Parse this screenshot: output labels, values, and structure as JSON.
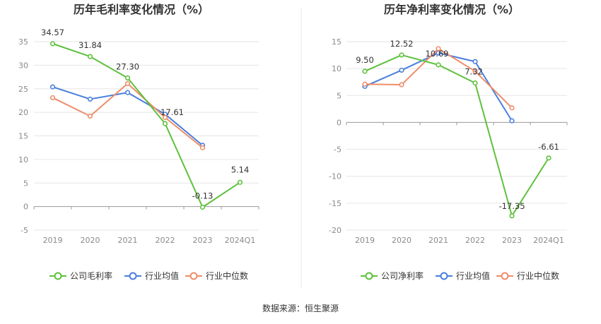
{
  "chart_data": [
    {
      "type": "line",
      "title": "历年毛利率变化情况（%）",
      "categories": [
        "2019",
        "2020",
        "2021",
        "2022",
        "2023",
        "2024Q1"
      ],
      "yticks": [
        "35",
        "30",
        "25",
        "20",
        "15",
        "10",
        "5",
        "0",
        "-5"
      ],
      "ylim": [
        -5,
        35
      ],
      "grid": true,
      "legend_position": "bottom",
      "series": [
        {
          "name": "公司毛利率",
          "color": "#5ec13d",
          "values": [
            34.57,
            31.84,
            27.3,
            17.61,
            -0.13,
            5.14
          ],
          "labels": [
            "34.57",
            "31.84",
            "27.30",
            "17.61",
            "-0.13",
            "5.14"
          ]
        },
        {
          "name": "行业均值",
          "color": "#4a7fdc",
          "values": [
            25.4,
            22.8,
            24.2,
            19.6,
            13.0,
            null
          ]
        },
        {
          "name": "行业中位数",
          "color": "#ee8d6a",
          "values": [
            23.1,
            19.2,
            26.1,
            18.9,
            12.5,
            null
          ]
        }
      ]
    },
    {
      "type": "line",
      "title": "历年净利率变化情况（%）",
      "categories": [
        "2019",
        "2020",
        "2021",
        "2022",
        "2023",
        "2024Q1"
      ],
      "yticks": [
        "15",
        "10",
        "5",
        "0",
        "-5",
        "-10",
        "-15",
        "-20"
      ],
      "ylim": [
        -20,
        15
      ],
      "grid": true,
      "legend_position": "bottom",
      "series": [
        {
          "name": "公司净利率",
          "color": "#5ec13d",
          "values": [
            9.5,
            12.52,
            10.69,
            7.32,
            -17.35,
            -6.61
          ],
          "labels": [
            "9.50",
            "12.52",
            "10.69",
            "7.32",
            "-17.35",
            "-6.61"
          ]
        },
        {
          "name": "行业均值",
          "color": "#4a7fdc",
          "values": [
            6.7,
            9.7,
            12.9,
            11.3,
            0.3,
            null
          ]
        },
        {
          "name": "行业中位数",
          "color": "#ee8d6a",
          "values": [
            7.1,
            7.0,
            13.7,
            9.5,
            2.7,
            null
          ]
        }
      ]
    }
  ],
  "source": "数据来源：恒生聚源"
}
